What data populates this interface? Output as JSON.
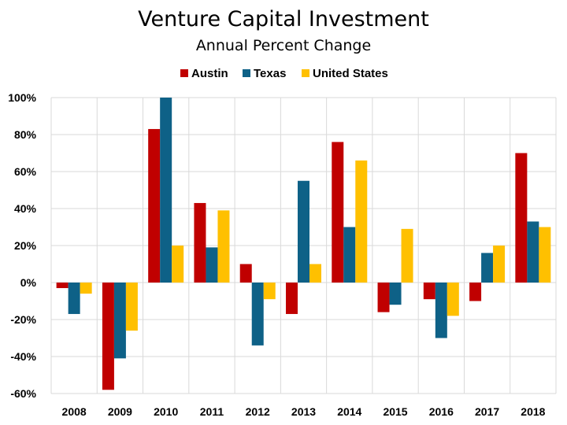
{
  "chart_data": {
    "type": "bar",
    "title": "Venture Capital Investment",
    "subtitle": "Annual Percent Change",
    "xlabel": "",
    "ylabel": "",
    "categories": [
      "2008",
      "2009",
      "2010",
      "2011",
      "2012",
      "2013",
      "2014",
      "2015",
      "2016",
      "2017",
      "2018"
    ],
    "series": [
      {
        "name": "Austin",
        "color": "#c00000",
        "values": [
          -3,
          -58,
          83,
          43,
          10,
          -17,
          76,
          -16,
          -9,
          -10,
          70
        ]
      },
      {
        "name": "Texas",
        "color": "#0e6187",
        "values": [
          -17,
          -41,
          100,
          19,
          -34,
          55,
          30,
          -12,
          -30,
          16,
          33
        ]
      },
      {
        "name": "United States",
        "color": "#ffc000",
        "values": [
          -6,
          -26,
          20,
          39,
          -9,
          10,
          66,
          29,
          -18,
          20,
          30
        ]
      }
    ],
    "ylim": [
      -60,
      100
    ],
    "yticks": [
      -60,
      -40,
      -20,
      0,
      20,
      40,
      60,
      80,
      100
    ],
    "ytick_labels": [
      "-60%",
      "-40%",
      "-20%",
      "0%",
      "20%",
      "40%",
      "60%",
      "80%",
      "100%"
    ],
    "grid": true,
    "legend_position": "top-center"
  }
}
